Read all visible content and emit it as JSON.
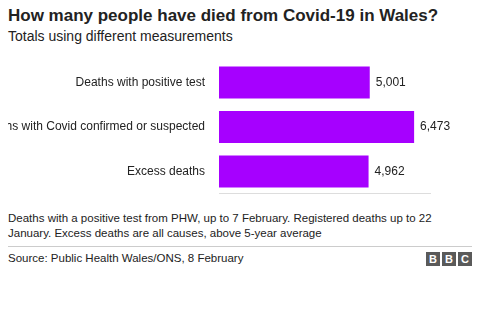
{
  "chart_data": {
    "type": "bar",
    "orientation": "horizontal",
    "title": "How many people have died from Covid-19 in Wales?",
    "subtitle": "Totals using different measurements",
    "categories": [
      "Deaths with positive test",
      "Deaths with Covid confirmed or suspected",
      "Excess deaths"
    ],
    "values": [
      5001,
      6473,
      4962
    ],
    "value_labels": [
      "5,001",
      "6,473",
      "4,962"
    ],
    "data_labels": true,
    "color": "#a600ff",
    "xlim": [
      0,
      7000
    ],
    "grid": false,
    "tick_labels": "y",
    "note": "Deaths with a positive test from PHW, up to 7 February. Registered deaths up to 22 January. Excess deaths are all causes, above 5-year average",
    "source": "Source: Public Health Wales/ONS, 8 February",
    "logo": "BBC"
  }
}
